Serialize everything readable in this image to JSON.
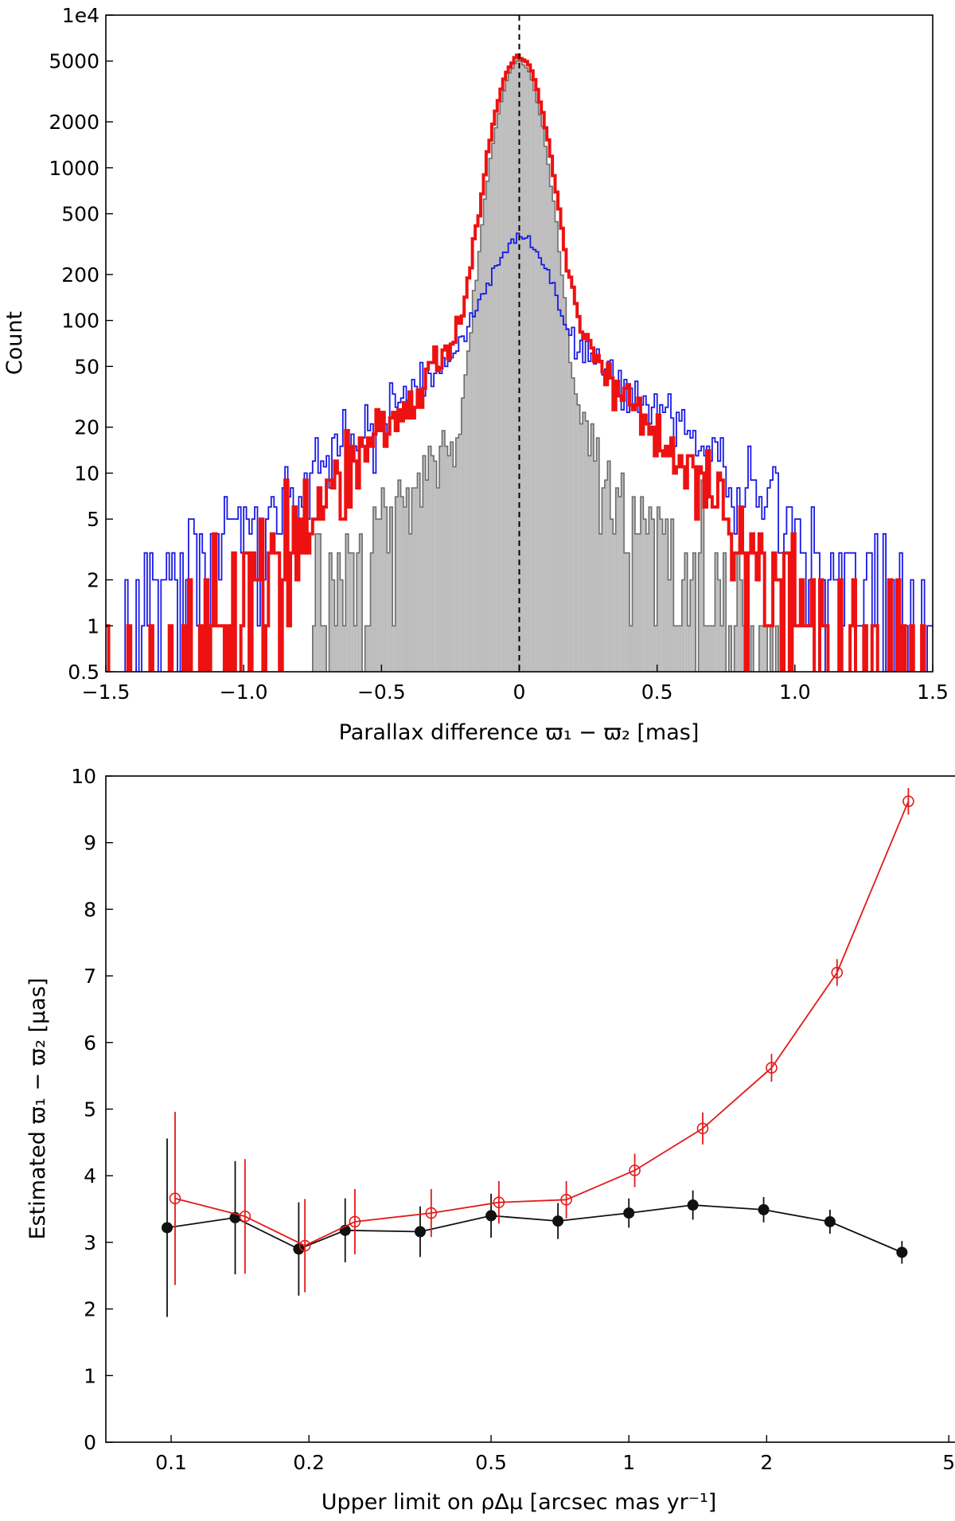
{
  "chart_data": [
    {
      "type": "histogram",
      "title": "",
      "xlabel": "Parallax difference ϖ₁ − ϖ₂ [mas]",
      "ylabel": "Count",
      "xlim": [
        -1.5,
        1.5
      ],
      "ylim": [
        0.5,
        10000
      ],
      "yscale": "log",
      "x_ticks": [
        -1.5,
        -1.0,
        -0.5,
        0,
        0.5,
        1.0,
        1.5
      ],
      "x_tick_labels": [
        "−1.5",
        "−1.0",
        "−0.5",
        "0",
        "0.5",
        "1.0",
        "1.5"
      ],
      "y_ticks": [
        0.5,
        1,
        2,
        5,
        10,
        20,
        50,
        100,
        200,
        500,
        1000,
        2000,
        5000,
        10000
      ],
      "y_tick_labels": [
        "0.5",
        "1",
        "2",
        "5",
        "10",
        "20",
        "50",
        "100",
        "200",
        "500",
        "1000",
        "2000",
        "5000",
        "1e4"
      ],
      "reference_line": {
        "x": 0,
        "style": "dashed",
        "color": "#000000"
      },
      "bin_width": 0.01,
      "series": [
        {
          "name": "subset (filled grey)",
          "style": "filled",
          "color": "#bdbdbd",
          "edge_color": "#6e6e6e",
          "peak_count": 4900,
          "core_width_mas": 0.06,
          "wing_amplitude": 50,
          "wing_scale_mas": 0.2,
          "extent_mas": [
            -0.75,
            0.95
          ]
        },
        {
          "name": "blue subset",
          "style": "step",
          "color": "#1a1ae6",
          "peak_count": 235,
          "core_width_mas": 0.08,
          "wing_amplitude": 130,
          "wing_scale_mas": 0.3,
          "extent_mas": [
            -1.43,
            1.5
          ]
        },
        {
          "name": "all pairs (thick red)",
          "style": "step",
          "color": "#ee1111",
          "peak_count": 5100,
          "core_width_mas": 0.065,
          "wing_amplitude": 230,
          "wing_scale_mas": 0.2,
          "extent_mas": [
            -1.5,
            1.5
          ]
        }
      ]
    },
    {
      "type": "line",
      "title": "",
      "xlabel": "Upper limit on ρΔμ [arcsec mas yr⁻¹]",
      "ylabel": "Estimated ϖ₁ − ϖ₂ [μas]",
      "xscale": "log",
      "xlim": [
        0.072,
        5.2
      ],
      "ylim": [
        0,
        10
      ],
      "x_ticks": [
        0.1,
        0.2,
        0.5,
        1,
        2,
        5
      ],
      "x_tick_labels": [
        "0.1",
        "0.2",
        "0.5",
        "1",
        "2",
        "5"
      ],
      "y_ticks": [
        0,
        1,
        2,
        3,
        4,
        5,
        6,
        7,
        8,
        9,
        10
      ],
      "y_tick_labels": [
        "0",
        "1",
        "2",
        "3",
        "4",
        "5",
        "6",
        "7",
        "8",
        "9",
        "10"
      ],
      "series": [
        {
          "name": "black (filled circles)",
          "color": "#111111",
          "marker": "filled-circle",
          "x": [
            0.098,
            0.138,
            0.19,
            0.24,
            0.35,
            0.5,
            0.7,
            1.0,
            1.38,
            1.97,
            2.75,
            3.95
          ],
          "y": [
            3.22,
            3.37,
            2.9,
            3.18,
            3.16,
            3.4,
            3.32,
            3.44,
            3.56,
            3.49,
            3.31,
            2.85
          ],
          "yerr": [
            1.34,
            0.85,
            0.7,
            0.48,
            0.38,
            0.33,
            0.27,
            0.22,
            0.22,
            0.19,
            0.18,
            0.17
          ]
        },
        {
          "name": "red (open circles)",
          "color": "#e31a1a",
          "marker": "open-circle",
          "x": [
            0.102,
            0.145,
            0.196,
            0.252,
            0.37,
            0.52,
            0.73,
            1.03,
            1.45,
            2.05,
            2.85,
            4.08
          ],
          "y": [
            3.66,
            3.39,
            2.95,
            3.31,
            3.44,
            3.6,
            3.64,
            4.08,
            4.71,
            5.62,
            7.05,
            9.62
          ],
          "yerr": [
            1.3,
            0.86,
            0.7,
            0.49,
            0.36,
            0.32,
            0.28,
            0.25,
            0.24,
            0.21,
            0.2,
            0.2
          ]
        }
      ]
    }
  ]
}
